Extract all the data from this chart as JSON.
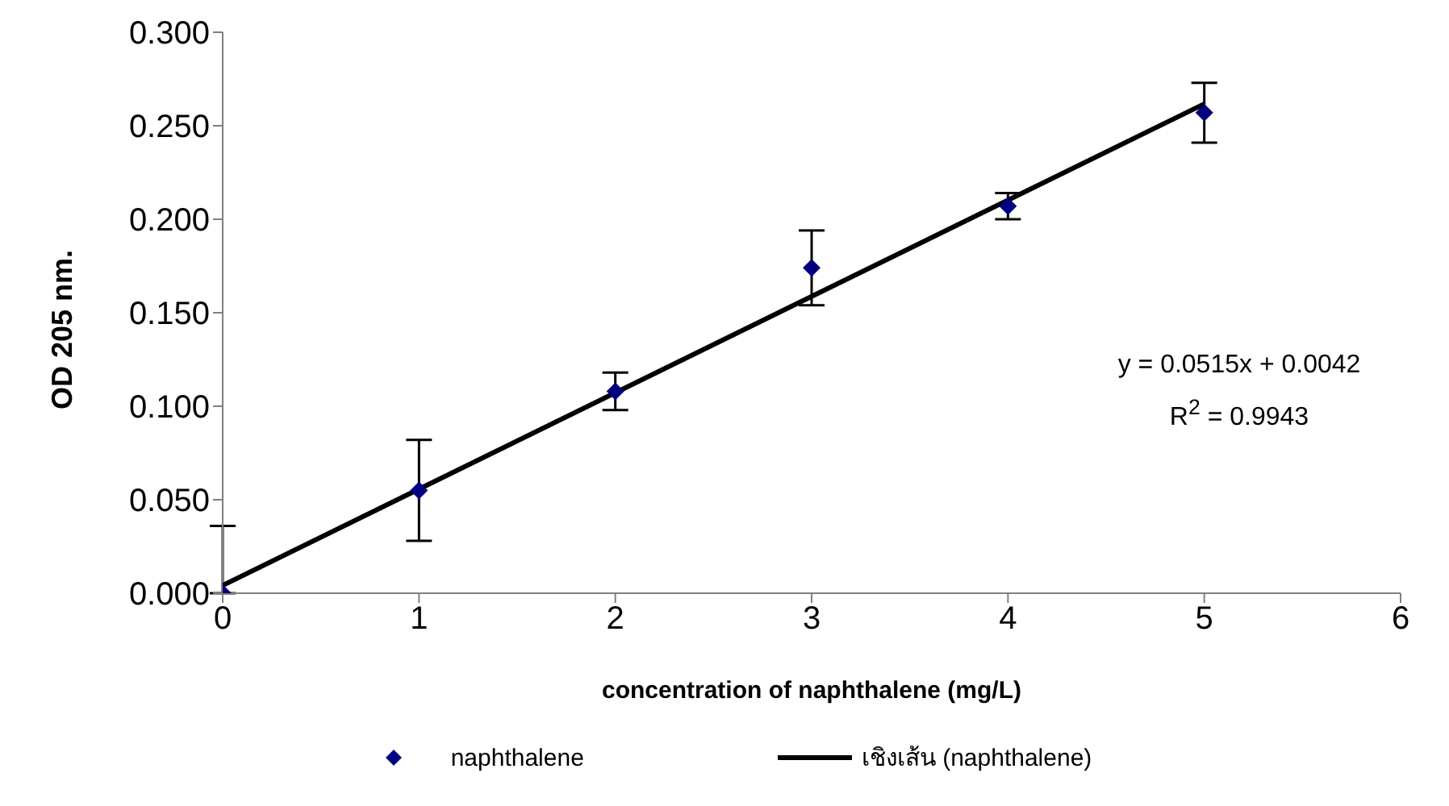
{
  "chart_data": {
    "type": "scatter",
    "xlabel": "concentration of naphthalene (mg/L)",
    "ylabel": "OD 205 nm.",
    "x": [
      0,
      1,
      2,
      3,
      4,
      5
    ],
    "series": [
      {
        "name": "naphthalene",
        "color": "#000080",
        "values": [
          0.0,
          0.055,
          0.108,
          0.174,
          0.207,
          0.257
        ],
        "errors": [
          [
            0,
            0.036
          ],
          0.027,
          0.01,
          0.02,
          0.007,
          0.016
        ],
        "marker": "diamond"
      },
      {
        "name": "เชิงเส้น (naphthalene)",
        "type": "line",
        "color": "#000000",
        "x": [
          0,
          5
        ],
        "values": [
          0.0042,
          0.2617
        ],
        "marker": "none",
        "line_style": "solid"
      }
    ],
    "xlim": [
      0,
      6
    ],
    "xticks": [
      0,
      1,
      2,
      3,
      4,
      5,
      6
    ],
    "ylim": [
      0,
      0.3
    ],
    "yticks": [
      {
        "value": 0,
        "label": "0.000"
      },
      {
        "value": 0.05,
        "label": "0.050"
      },
      {
        "value": 0.1,
        "label": "0.100"
      },
      {
        "value": 0.15,
        "label": "0.150"
      },
      {
        "value": 0.2,
        "label": "0.200"
      },
      {
        "value": 0.25,
        "label": "0.250"
      },
      {
        "value": 0.3,
        "label": "0.300"
      }
    ],
    "annotations": [
      "y = 0.0515x + 0.0042",
      "R$^{2}$ = 0.9943"
    ],
    "grid": false,
    "legend": "bottom"
  }
}
